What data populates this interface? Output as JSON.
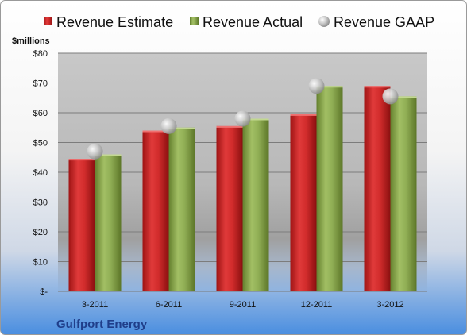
{
  "chart_data": {
    "type": "bar",
    "company": "Gulfport Energy",
    "unit_label": "$millions",
    "categories": [
      "3-2011",
      "6-2011",
      "9-2011",
      "12-2011",
      "3-2012"
    ],
    "series": [
      {
        "name": "Revenue Estimate",
        "kind": "bar",
        "color": "#d42b2b",
        "values": [
          44.5,
          54.0,
          55.5,
          59.5,
          69.0
        ]
      },
      {
        "name": "Revenue Actual",
        "kind": "bar",
        "color": "#8fac52",
        "values": [
          46.0,
          55.0,
          58.0,
          69.0,
          65.5
        ]
      },
      {
        "name": "Revenue GAAP",
        "kind": "marker",
        "color": "#b8b8b8",
        "values": [
          47.0,
          55.5,
          58.0,
          69.0,
          65.5
        ]
      }
    ],
    "ylim": [
      0,
      80
    ],
    "yticks": [
      0,
      10,
      20,
      30,
      40,
      50,
      60,
      70,
      80
    ],
    "ytick_labels": [
      "$-",
      "$10",
      "$20",
      "$30",
      "$40",
      "$50",
      "$60",
      "$70",
      "$80"
    ],
    "grid": true,
    "legend_position": "top"
  }
}
